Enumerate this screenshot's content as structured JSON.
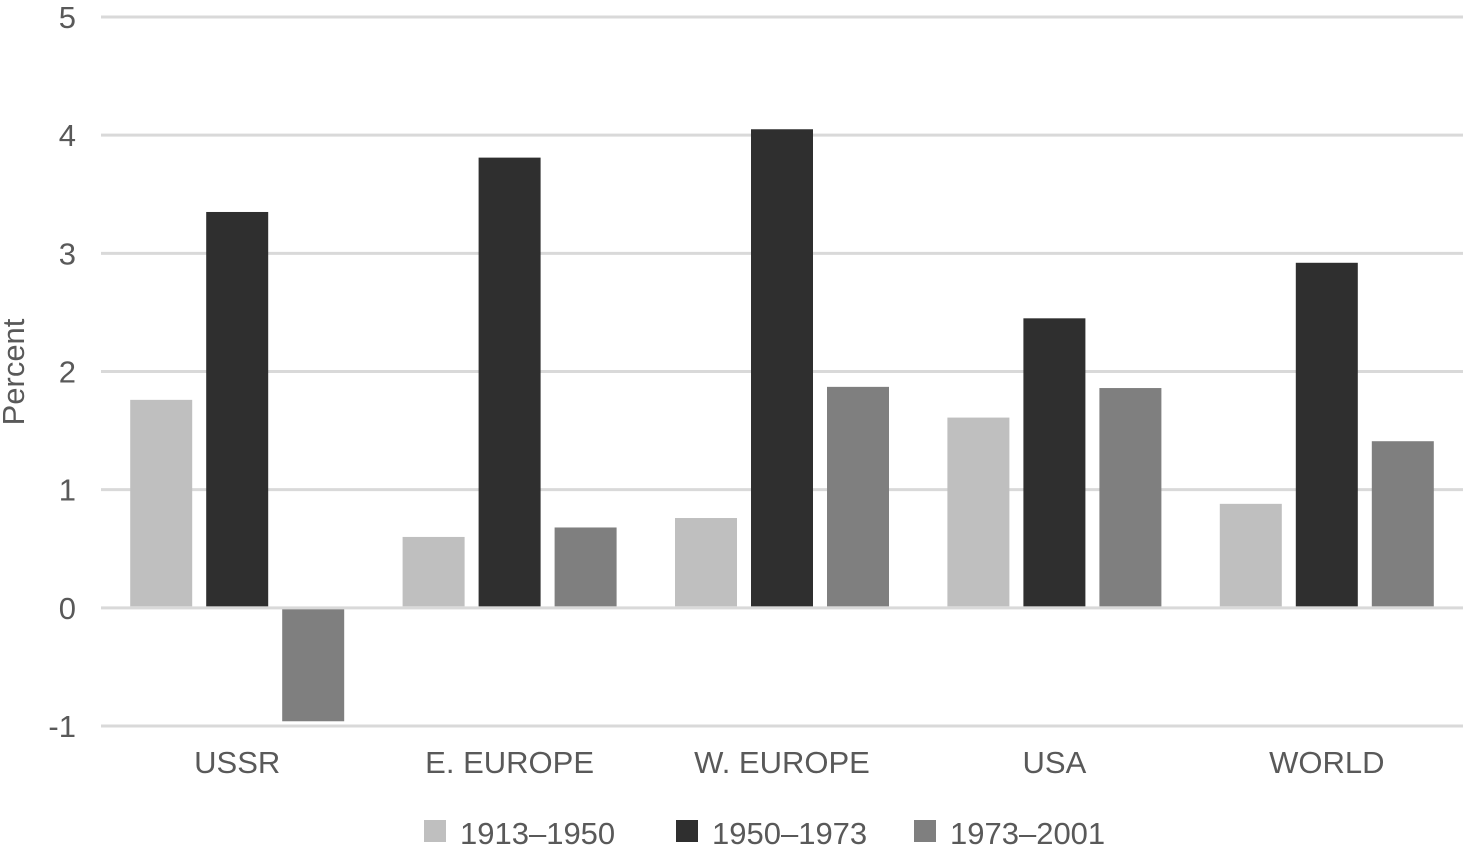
{
  "chart_data": {
    "type": "bar",
    "title": "",
    "xlabel": "",
    "ylabel": "Percent",
    "ylim": [
      -1,
      5
    ],
    "yticks": [
      "-1",
      "0",
      "1",
      "2",
      "3",
      "4",
      "5"
    ],
    "grid": true,
    "legend_position": "bottom",
    "categories": [
      "USSR",
      "E. EUROPE",
      "W. EUROPE",
      "USA",
      "WORLD"
    ],
    "series": [
      {
        "name": "1913–1950",
        "color": "#bfbfbf",
        "values": [
          1.76,
          0.6,
          0.76,
          1.61,
          0.88
        ]
      },
      {
        "name": "1950–1973",
        "color": "#2f2f2f",
        "values": [
          3.35,
          3.81,
          4.05,
          2.45,
          2.92
        ]
      },
      {
        "name": "1973–2001",
        "color": "#7f7f7f",
        "values": [
          -0.96,
          0.68,
          1.87,
          1.86,
          1.41
        ]
      }
    ],
    "colors": {
      "gridline": "#d9d9d9",
      "text": "#595959"
    }
  }
}
